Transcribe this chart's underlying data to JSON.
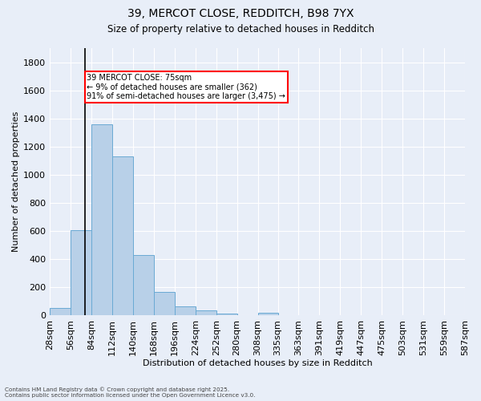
{
  "title1": "39, MERCOT CLOSE, REDDITCH, B98 7YX",
  "title2": "Size of property relative to detached houses in Redditch",
  "xlabel": "Distribution of detached houses by size in Redditch",
  "ylabel": "Number of detached properties",
  "background_color": "#e8eef8",
  "bar_color": "#b8d0e8",
  "bar_edge_color": "#6aaad4",
  "bin_edges": [
    28,
    56,
    84,
    112,
    140,
    168,
    196,
    224,
    252,
    280,
    308,
    335,
    363,
    391,
    419,
    447,
    475,
    503,
    531,
    559,
    587
  ],
  "values": [
    55,
    605,
    1360,
    1130,
    430,
    170,
    65,
    35,
    15,
    0,
    18,
    0,
    0,
    0,
    0,
    0,
    0,
    0,
    0,
    0
  ],
  "tick_labels": [
    "28sqm",
    "56sqm",
    "84sqm",
    "112sqm",
    "140sqm",
    "168sqm",
    "196sqm",
    "224sqm",
    "252sqm",
    "280sqm",
    "308sqm",
    "335sqm",
    "363sqm",
    "391sqm",
    "419sqm",
    "447sqm",
    "475sqm",
    "503sqm",
    "531sqm",
    "559sqm",
    "587sqm"
  ],
  "ylim": [
    0,
    1900
  ],
  "yticks": [
    0,
    200,
    400,
    600,
    800,
    1000,
    1200,
    1400,
    1600,
    1800
  ],
  "property_line_x": 75,
  "annotation_text": "39 MERCOT CLOSE: 75sqm\n← 9% of detached houses are smaller (362)\n91% of semi-detached houses are larger (3,475) →",
  "annotation_box_color": "white",
  "annotation_box_edge_color": "red",
  "vline_color": "black",
  "footer_line1": "Contains HM Land Registry data © Crown copyright and database right 2025.",
  "footer_line2": "Contains public sector information licensed under the Open Government Licence v3.0."
}
